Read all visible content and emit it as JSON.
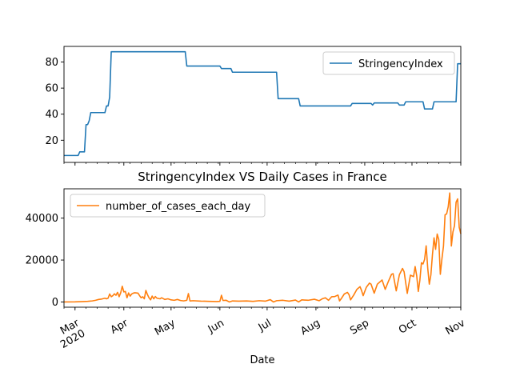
{
  "chart_data": [
    {
      "type": "line",
      "title": "",
      "xlabel": "",
      "ylabel": "",
      "xlim": [
        "2020-02-23",
        "2020-11-01"
      ],
      "ylim": [
        3,
        92
      ],
      "yticks": [
        20,
        40,
        60,
        80
      ],
      "legend": "top-right",
      "grid": false,
      "colors": {
        "StringencyIndex": "#1f77b4"
      },
      "series": [
        {
          "name": "StringencyIndex",
          "points": [
            [
              "2020-02-23",
              8.3
            ],
            [
              "2020-02-28",
              8.3
            ],
            [
              "2020-03-03",
              8.3
            ],
            [
              "2020-03-04",
              11.1
            ],
            [
              "2020-03-07",
              11.1
            ],
            [
              "2020-03-08",
              32.0
            ],
            [
              "2020-03-09",
              32.0
            ],
            [
              "2020-03-10",
              35.0
            ],
            [
              "2020-03-11",
              41.2
            ],
            [
              "2020-03-20",
              41.2
            ],
            [
              "2020-03-21",
              46.3
            ],
            [
              "2020-03-22",
              46.3
            ],
            [
              "2020-03-23",
              53.0
            ],
            [
              "2020-03-24",
              87.9
            ],
            [
              "2020-05-10",
              87.9
            ],
            [
              "2020-05-11",
              76.9
            ],
            [
              "2020-06-01",
              76.9
            ],
            [
              "2020-06-02",
              75.0
            ],
            [
              "2020-06-08",
              75.0
            ],
            [
              "2020-06-09",
              72.2
            ],
            [
              "2020-07-07",
              72.2
            ],
            [
              "2020-07-08",
              51.9
            ],
            [
              "2020-07-21",
              51.9
            ],
            [
              "2020-07-22",
              46.3
            ],
            [
              "2020-08-23",
              46.3
            ],
            [
              "2020-08-24",
              48.2
            ],
            [
              "2020-09-05",
              48.2
            ],
            [
              "2020-09-06",
              47.0
            ],
            [
              "2020-09-07",
              48.6
            ],
            [
              "2020-09-22",
              48.6
            ],
            [
              "2020-09-23",
              47.0
            ],
            [
              "2020-09-26",
              47.0
            ],
            [
              "2020-09-27",
              49.5
            ],
            [
              "2020-10-08",
              49.5
            ],
            [
              "2020-10-09",
              44.0
            ],
            [
              "2020-10-14",
              44.0
            ],
            [
              "2020-10-15",
              49.5
            ],
            [
              "2020-10-29",
              49.5
            ],
            [
              "2020-10-30",
              78.7
            ],
            [
              "2020-11-01",
              78.7
            ]
          ]
        }
      ]
    },
    {
      "type": "line",
      "title": "StringencyIndex VS Daily Cases in France",
      "xlabel": "Date",
      "ylabel": "",
      "xlim": [
        "2020-02-23",
        "2020-11-01"
      ],
      "ylim": [
        -2500,
        54000
      ],
      "yticks": [
        0,
        20000,
        40000
      ],
      "xticks": [
        "2020-03-01",
        "2020-04-01",
        "2020-05-01",
        "2020-06-01",
        "2020-07-01",
        "2020-08-01",
        "2020-09-01",
        "2020-10-01",
        "2020-11-01"
      ],
      "xtick_labels": [
        "Mar\n2020",
        "Apr",
        "May",
        "Jun",
        "Jul",
        "Aug",
        "Sep",
        "Oct",
        "Nov"
      ],
      "legend": "top-left",
      "grid": false,
      "colors": {
        "number_of_cases_each_day": "#ff7f0e"
      },
      "series": [
        {
          "name": "number_of_cases_each_day",
          "points": [
            [
              "2020-02-23",
              0
            ],
            [
              "2020-03-01",
              50
            ],
            [
              "2020-03-05",
              150
            ],
            [
              "2020-03-09",
              300
            ],
            [
              "2020-03-12",
              500
            ],
            [
              "2020-03-14",
              800
            ],
            [
              "2020-03-16",
              1200
            ],
            [
              "2020-03-18",
              1400
            ],
            [
              "2020-03-20",
              1800
            ],
            [
              "2020-03-21",
              1500
            ],
            [
              "2020-03-22",
              1800
            ],
            [
              "2020-03-23",
              3800
            ],
            [
              "2020-03-24",
              2500
            ],
            [
              "2020-03-25",
              3000
            ],
            [
              "2020-03-26",
              3900
            ],
            [
              "2020-03-27",
              3200
            ],
            [
              "2020-03-28",
              4600
            ],
            [
              "2020-03-29",
              2500
            ],
            [
              "2020-03-30",
              4400
            ],
            [
              "2020-03-31",
              7500
            ],
            [
              "2020-04-01",
              4800
            ],
            [
              "2020-04-02",
              5000
            ],
            [
              "2020-04-03",
              2000
            ],
            [
              "2020-04-04",
              4300
            ],
            [
              "2020-04-05",
              2800
            ],
            [
              "2020-04-06",
              3800
            ],
            [
              "2020-04-07",
              4200
            ],
            [
              "2020-04-08",
              4400
            ],
            [
              "2020-04-10",
              4200
            ],
            [
              "2020-04-11",
              3000
            ],
            [
              "2020-04-12",
              2000
            ],
            [
              "2020-04-13",
              2500
            ],
            [
              "2020-04-14",
              1500
            ],
            [
              "2020-04-15",
              5500
            ],
            [
              "2020-04-16",
              3500
            ],
            [
              "2020-04-17",
              2000
            ],
            [
              "2020-04-18",
              1000
            ],
            [
              "2020-04-19",
              2800
            ],
            [
              "2020-04-20",
              1500
            ],
            [
              "2020-04-21",
              2600
            ],
            [
              "2020-04-22",
              1800
            ],
            [
              "2020-04-24",
              1500
            ],
            [
              "2020-04-25",
              2000
            ],
            [
              "2020-04-27",
              1200
            ],
            [
              "2020-04-29",
              1500
            ],
            [
              "2020-05-01",
              1000
            ],
            [
              "2020-05-03",
              800
            ],
            [
              "2020-05-05",
              1200
            ],
            [
              "2020-05-07",
              700
            ],
            [
              "2020-05-09",
              500
            ],
            [
              "2020-05-11",
              800
            ],
            [
              "2020-05-12",
              4000
            ],
            [
              "2020-05-13",
              500
            ],
            [
              "2020-05-15",
              600
            ],
            [
              "2020-05-20",
              400
            ],
            [
              "2020-05-25",
              300
            ],
            [
              "2020-05-30",
              200
            ],
            [
              "2020-06-01",
              300
            ],
            [
              "2020-06-02",
              3200
            ],
            [
              "2020-06-03",
              700
            ],
            [
              "2020-06-05",
              800
            ],
            [
              "2020-06-07",
              0
            ],
            [
              "2020-06-09",
              500
            ],
            [
              "2020-06-13",
              400
            ],
            [
              "2020-06-18",
              500
            ],
            [
              "2020-06-22",
              300
            ],
            [
              "2020-06-26",
              600
            ],
            [
              "2020-06-30",
              400
            ],
            [
              "2020-07-03",
              1100
            ],
            [
              "2020-07-05",
              0
            ],
            [
              "2020-07-07",
              600
            ],
            [
              "2020-07-11",
              800
            ],
            [
              "2020-07-15",
              400
            ],
            [
              "2020-07-19",
              900
            ],
            [
              "2020-07-21",
              0
            ],
            [
              "2020-07-23",
              1000
            ],
            [
              "2020-07-27",
              800
            ],
            [
              "2020-07-31",
              1300
            ],
            [
              "2020-08-03",
              600
            ],
            [
              "2020-08-05",
              1500
            ],
            [
              "2020-08-07",
              2000
            ],
            [
              "2020-08-09",
              800
            ],
            [
              "2020-08-11",
              2500
            ],
            [
              "2020-08-13",
              2600
            ],
            [
              "2020-08-15",
              3300
            ],
            [
              "2020-08-16",
              500
            ],
            [
              "2020-08-17",
              1500
            ],
            [
              "2020-08-19",
              3800
            ],
            [
              "2020-08-21",
              4600
            ],
            [
              "2020-08-22",
              3500
            ],
            [
              "2020-08-23",
              1000
            ],
            [
              "2020-08-25",
              3300
            ],
            [
              "2020-08-27",
              6000
            ],
            [
              "2020-08-29",
              7300
            ],
            [
              "2020-08-30",
              5400
            ],
            [
              "2020-08-31",
              3000
            ],
            [
              "2020-09-02",
              7000
            ],
            [
              "2020-09-04",
              9000
            ],
            [
              "2020-09-05",
              8500
            ],
            [
              "2020-09-07",
              4200
            ],
            [
              "2020-09-09",
              8500
            ],
            [
              "2020-09-11",
              9800
            ],
            [
              "2020-09-12",
              10500
            ],
            [
              "2020-09-14",
              6000
            ],
            [
              "2020-09-16",
              9800
            ],
            [
              "2020-09-18",
              13200
            ],
            [
              "2020-09-19",
              13500
            ],
            [
              "2020-09-21",
              5300
            ],
            [
              "2020-09-23",
              13000
            ],
            [
              "2020-09-25",
              16000
            ],
            [
              "2020-09-26",
              14400
            ],
            [
              "2020-09-28",
              4100
            ],
            [
              "2020-09-30",
              12800
            ],
            [
              "2020-10-02",
              12100
            ],
            [
              "2020-10-03",
              16900
            ],
            [
              "2020-10-04",
              12500
            ],
            [
              "2020-10-05",
              5000
            ],
            [
              "2020-10-06",
              10400
            ],
            [
              "2020-10-07",
              18700
            ],
            [
              "2020-10-08",
              18100
            ],
            [
              "2020-10-09",
              20300
            ],
            [
              "2020-10-10",
              26800
            ],
            [
              "2020-10-11",
              16100
            ],
            [
              "2020-10-12",
              8500
            ],
            [
              "2020-10-13",
              12900
            ],
            [
              "2020-10-14",
              22600
            ],
            [
              "2020-10-15",
              30600
            ],
            [
              "2020-10-16",
              25100
            ],
            [
              "2020-10-17",
              32400
            ],
            [
              "2020-10-18",
              29800
            ],
            [
              "2020-10-19",
              13200
            ],
            [
              "2020-10-20",
              20500
            ],
            [
              "2020-10-21",
              26600
            ],
            [
              "2020-10-22",
              41600
            ],
            [
              "2020-10-23",
              42000
            ],
            [
              "2020-10-24",
              45400
            ],
            [
              "2020-10-25",
              52000
            ],
            [
              "2020-10-26",
              26700
            ],
            [
              "2020-10-27",
              33400
            ],
            [
              "2020-10-28",
              36400
            ],
            [
              "2020-10-29",
              47600
            ],
            [
              "2020-10-30",
              49200
            ],
            [
              "2020-10-31",
              35600
            ],
            [
              "2020-11-01",
              32500
            ]
          ]
        }
      ]
    }
  ]
}
